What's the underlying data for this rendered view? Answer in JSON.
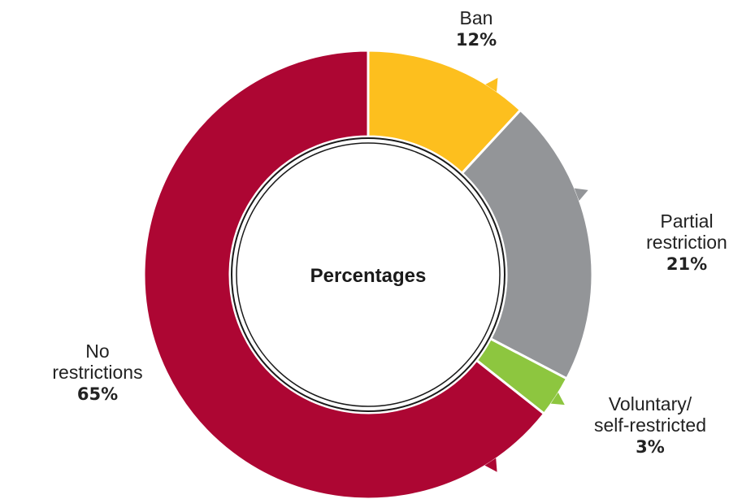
{
  "chart_data": {
    "type": "pie",
    "style": "donut",
    "center_label": "Percentages",
    "slices": [
      {
        "label": [
          "Ban"
        ],
        "value": 12,
        "value_label": "12%",
        "color": "#FDBF1E"
      },
      {
        "label": [
          "Partial",
          "restriction"
        ],
        "value": 21,
        "value_label": "21%",
        "color": "#939598"
      },
      {
        "label": [
          "Voluntary/",
          "self-restricted"
        ],
        "value": 3,
        "value_label": "3%",
        "color": "#8DC63F"
      },
      {
        "label": [
          "No",
          "restrictions"
        ],
        "value": 65,
        "value_label": "65%",
        "color": "#AD0633"
      }
    ]
  }
}
